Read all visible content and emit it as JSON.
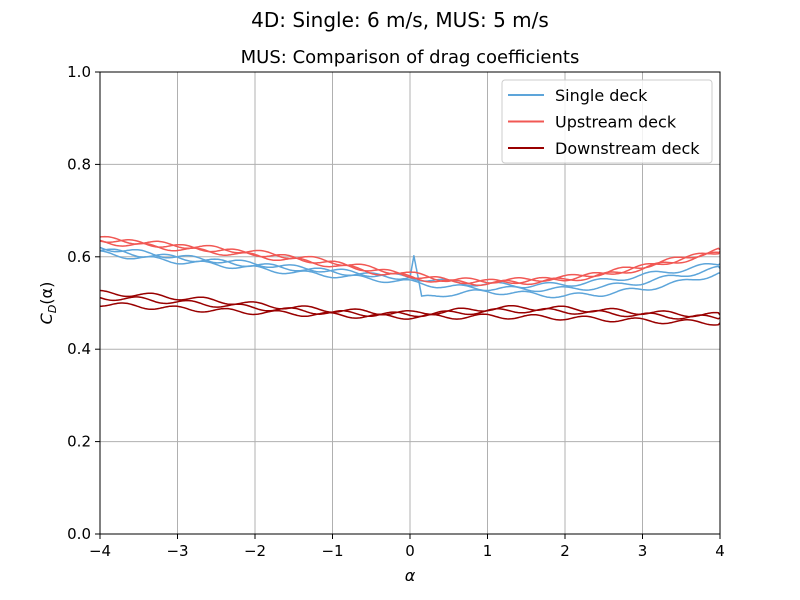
{
  "chart_data": {
    "type": "line",
    "suptitle": "4D: Single: 6 m/s, MUS: 5 m/s",
    "title": "MUS: Comparison of drag coefficients",
    "xlabel": "α",
    "ylabel_main": "C",
    "ylabel_sub": "D",
    "ylabel_tail": "(α)",
    "xlim": [
      -4,
      4
    ],
    "ylim": [
      0.0,
      1.0
    ],
    "xticks": [
      -4,
      -3,
      -2,
      -1,
      0,
      1,
      2,
      3,
      4
    ],
    "xtick_labels": [
      "−4",
      "−3",
      "−2",
      "−1",
      "0",
      "1",
      "2",
      "3",
      "4"
    ],
    "yticks": [
      0.0,
      0.2,
      0.4,
      0.6,
      0.8,
      1.0
    ],
    "ytick_labels": [
      "0.0",
      "0.2",
      "0.4",
      "0.6",
      "0.8",
      "1.0"
    ],
    "grid": true,
    "legend_position": "top-right",
    "series": [
      {
        "name": "Single deck",
        "color": "#5DA5DA",
        "traces": [
          {
            "x": [
              -4,
              -3.5,
              -3,
              -2.5,
              -2,
              -1.5,
              -1,
              -0.5,
              0,
              0.05,
              0.15,
              0.5,
              1,
              1.5,
              2,
              2.5,
              3,
              3.5,
              4
            ],
            "y": [
              0.615,
              0.605,
              0.598,
              0.59,
              0.582,
              0.575,
              0.568,
              0.56,
              0.555,
              0.6,
              0.51,
              0.52,
              0.525,
              0.52,
              0.515,
              0.52,
              0.53,
              0.545,
              0.565
            ]
          },
          {
            "x": [
              -4,
              -3.5,
              -3,
              -2.5,
              -2,
              -1.5,
              -1,
              -0.5,
              0,
              0.5,
              1,
              1.5,
              2,
              2.5,
              3,
              3.5,
              4
            ],
            "y": [
              0.608,
              0.598,
              0.59,
              0.583,
              0.575,
              0.566,
              0.56,
              0.552,
              0.545,
              0.535,
              0.532,
              0.53,
              0.53,
              0.535,
              0.545,
              0.56,
              0.575
            ]
          },
          {
            "x": [
              -4,
              -3.5,
              -3,
              -2.5,
              -2,
              -1.5,
              -1,
              -0.5,
              0,
              0.5,
              1,
              1.5,
              2,
              2.5,
              3,
              3.5,
              4
            ],
            "y": [
              0.62,
              0.61,
              0.6,
              0.592,
              0.585,
              0.577,
              0.57,
              0.562,
              0.556,
              0.545,
              0.54,
              0.538,
              0.54,
              0.548,
              0.56,
              0.572,
              0.585
            ]
          }
        ]
      },
      {
        "name": "Upstream deck",
        "color": "#F15854",
        "traces": [
          {
            "x": [
              -4,
              -3.5,
              -3,
              -2.5,
              -2,
              -1.5,
              -1,
              -0.5,
              0,
              0.5,
              1,
              1.5,
              2,
              2.5,
              3,
              3.5,
              4
            ],
            "y": [
              0.64,
              0.632,
              0.625,
              0.618,
              0.61,
              0.6,
              0.59,
              0.575,
              0.563,
              0.55,
              0.548,
              0.55,
              0.555,
              0.565,
              0.58,
              0.597,
              0.615
            ]
          },
          {
            "x": [
              -4,
              -3.5,
              -3,
              -2.5,
              -2,
              -1.5,
              -1,
              -0.5,
              0,
              0.5,
              1,
              1.5,
              2,
              2.5,
              3,
              3.5,
              4
            ],
            "y": [
              0.632,
              0.625,
              0.617,
              0.61,
              0.602,
              0.593,
              0.582,
              0.568,
              0.556,
              0.545,
              0.543,
              0.545,
              0.55,
              0.56,
              0.575,
              0.592,
              0.608
            ]
          },
          {
            "x": [
              -4,
              -3.5,
              -3,
              -2.5,
              -2,
              -1.5,
              -1,
              -0.5,
              0,
              0.5,
              1,
              1.5,
              2,
              2.5,
              3,
              3.5,
              4
            ],
            "y": [
              0.638,
              0.63,
              0.622,
              0.615,
              0.607,
              0.597,
              0.586,
              0.572,
              0.56,
              0.548,
              0.546,
              0.548,
              0.553,
              0.563,
              0.578,
              0.595,
              0.612
            ]
          }
        ]
      },
      {
        "name": "Downstream deck",
        "color": "#990000",
        "traces": [
          {
            "x": [
              -4,
              -3.5,
              -3,
              -2.5,
              -2,
              -1.5,
              -1,
              -0.5,
              0,
              0.5,
              1,
              1.5,
              2,
              2.5,
              3,
              3.5,
              4
            ],
            "y": [
              0.522,
              0.518,
              0.512,
              0.505,
              0.497,
              0.49,
              0.485,
              0.48,
              0.478,
              0.482,
              0.488,
              0.49,
              0.488,
              0.484,
              0.48,
              0.476,
              0.474
            ]
          },
          {
            "x": [
              -4,
              -3.5,
              -3,
              -2.5,
              -2,
              -1.5,
              -1,
              -0.5,
              0,
              0.5,
              1,
              1.5,
              2,
              2.5,
              3,
              3.5,
              4
            ],
            "y": [
              0.512,
              0.508,
              0.502,
              0.496,
              0.49,
              0.484,
              0.479,
              0.476,
              0.475,
              0.478,
              0.482,
              0.484,
              0.482,
              0.478,
              0.474,
              0.47,
              0.468
            ]
          },
          {
            "x": [
              -4,
              -3.5,
              -3,
              -2.5,
              -2,
              -1.5,
              -1,
              -0.5,
              0,
              0.5,
              1,
              1.5,
              2,
              2.5,
              3,
              3.5,
              4
            ],
            "y": [
              0.498,
              0.493,
              0.488,
              0.484,
              0.48,
              0.477,
              0.474,
              0.471,
              0.47,
              0.47,
              0.471,
              0.47,
              0.468,
              0.465,
              0.462,
              0.459,
              0.457
            ]
          }
        ]
      }
    ]
  }
}
